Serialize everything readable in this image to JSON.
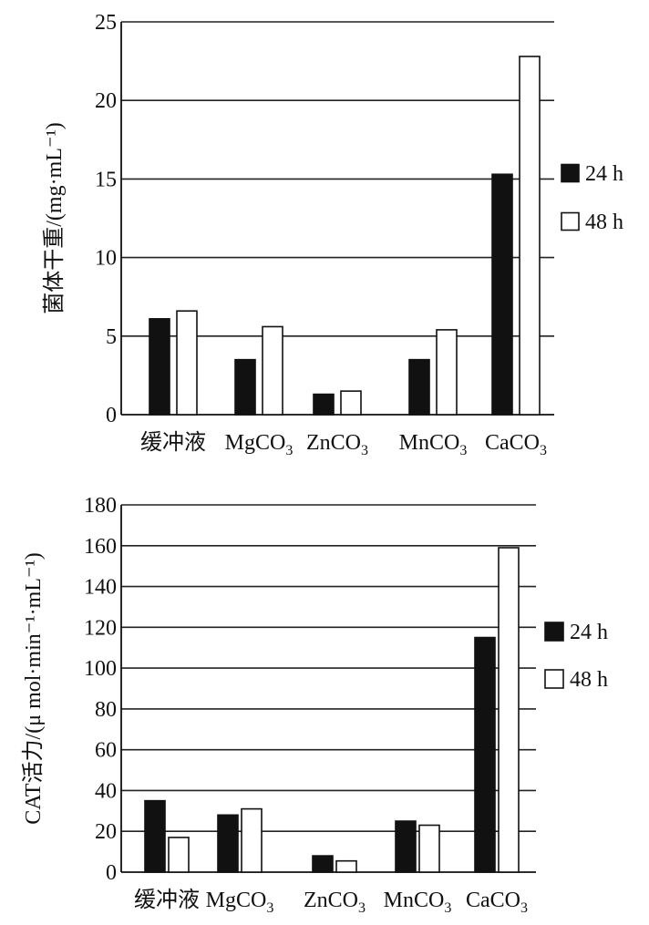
{
  "chart_data": [
    {
      "type": "bar",
      "ylabel": "菌体干重/(mg·mL⁻¹)",
      "categories": [
        {
          "base": "缓冲液",
          "sub": ""
        },
        {
          "base": "MgCO",
          "sub": "3"
        },
        {
          "base": "ZnCO",
          "sub": "3"
        },
        {
          "base": "MnCO",
          "sub": "3"
        },
        {
          "base": "CaCO",
          "sub": "3"
        }
      ],
      "series": [
        {
          "name": "24 h",
          "color": "#111111",
          "values": [
            6.1,
            3.5,
            1.3,
            3.5,
            15.3
          ]
        },
        {
          "name": "48 h",
          "color": "#ffffff",
          "values": [
            6.6,
            5.6,
            1.5,
            5.4,
            22.8
          ]
        }
      ],
      "ylim": [
        0,
        25
      ],
      "yticks": [
        "0",
        "5",
        "10",
        "15",
        "20",
        "25"
      ],
      "grid": true,
      "legend": "right"
    },
    {
      "type": "bar",
      "ylabel": "CAT活力/(μ mol·min⁻¹·mL⁻¹)",
      "categories": [
        {
          "base": "缓冲液",
          "sub": ""
        },
        {
          "base": "MgCO",
          "sub": "3"
        },
        {
          "base": "ZnCO",
          "sub": "3"
        },
        {
          "base": "MnCO",
          "sub": "3"
        },
        {
          "base": "CaCO",
          "sub": "3"
        }
      ],
      "series": [
        {
          "name": "24 h",
          "color": "#111111",
          "values": [
            35,
            28,
            8,
            25,
            115
          ]
        },
        {
          "name": "48 h",
          "color": "#ffffff",
          "values": [
            17,
            31,
            5.5,
            23,
            159
          ]
        }
      ],
      "ylim": [
        0,
        180
      ],
      "yticks": [
        "0",
        "20",
        "40",
        "60",
        "80",
        "100",
        "120",
        "140",
        "160",
        "180"
      ],
      "grid": true,
      "legend": "right"
    }
  ]
}
